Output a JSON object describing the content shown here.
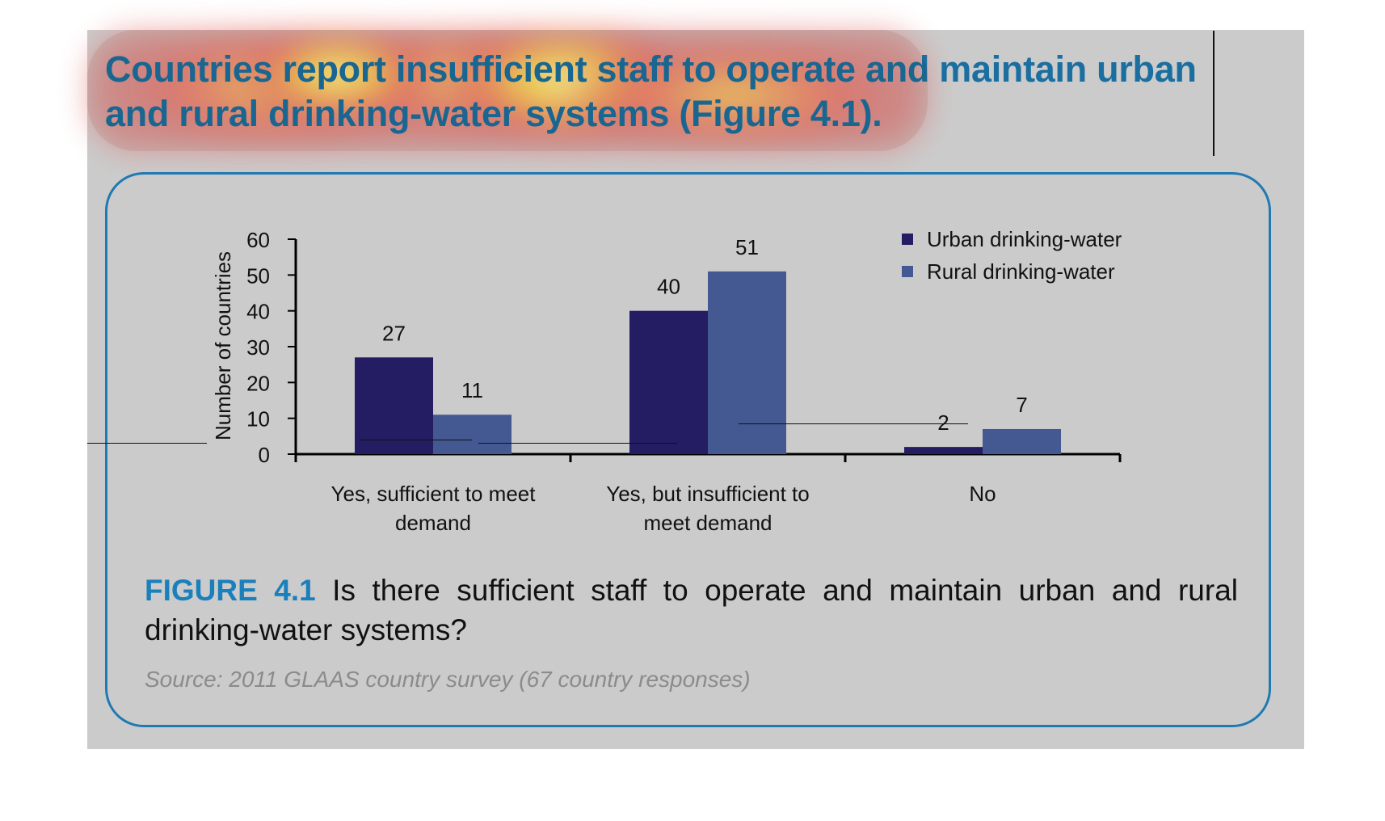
{
  "headline": {
    "text": "Countries report insufficient staff to operate and maintain urban and rural drinking-water systems (Figure 4.1)."
  },
  "figure": {
    "label": "FIGURE 4.1",
    "caption": " Is there sufficient staff to operate and maintain urban and rural drinking-water systems?",
    "source": "Source: 2011 GLAAS country survey (67 country responses)"
  },
  "colors": {
    "urban": "#241d63",
    "rural": "#445992",
    "accent": "#1a80bc",
    "border": "#1f79b3"
  },
  "chart_data": {
    "type": "bar",
    "title": "",
    "xlabel": "",
    "ylabel": "Number of countries",
    "ylim": [
      0,
      60
    ],
    "yticks": [
      0,
      10,
      20,
      30,
      40,
      50,
      60
    ],
    "categories": [
      [
        "Yes, sufficient to meet",
        "demand"
      ],
      [
        "Yes, but insufficient to",
        "meet demand"
      ],
      [
        "No"
      ]
    ],
    "series": [
      {
        "name": "Urban drinking-water",
        "values": [
          27,
          40,
          2
        ]
      },
      {
        "name": "Rural drinking-water",
        "values": [
          11,
          51,
          7
        ]
      }
    ],
    "data_labels": true,
    "legend": "top-right",
    "grid": false
  }
}
